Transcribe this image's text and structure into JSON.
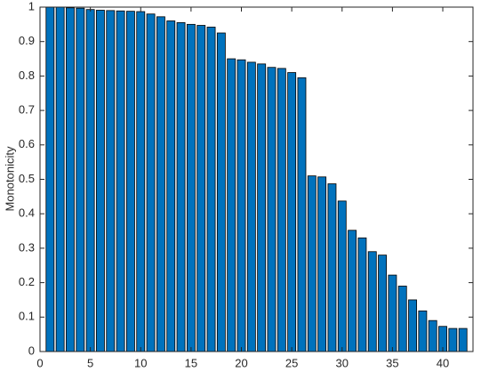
{
  "chart_data": {
    "type": "bar",
    "ylabel": "Monotonicity",
    "x": [
      1,
      2,
      3,
      4,
      5,
      6,
      7,
      8,
      9,
      10,
      11,
      12,
      13,
      14,
      15,
      16,
      17,
      18,
      19,
      20,
      21,
      22,
      23,
      24,
      25,
      26,
      27,
      28,
      29,
      30,
      31,
      32,
      33,
      34,
      35,
      36,
      37,
      38,
      39,
      40,
      41,
      42
    ],
    "values": [
      1,
      1,
      0.998,
      0.997,
      0.993,
      0.991,
      0.99,
      0.989,
      0.988,
      0.987,
      0.98,
      0.972,
      0.96,
      0.955,
      0.95,
      0.947,
      0.942,
      0.925,
      0.85,
      0.847,
      0.84,
      0.835,
      0.825,
      0.822,
      0.81,
      0.795,
      0.51,
      0.507,
      0.487,
      0.437,
      0.352,
      0.33,
      0.29,
      0.28,
      0.222,
      0.19,
      0.15,
      0.118,
      0.09,
      0.073,
      0.067,
      0.067
    ],
    "color": "#0072bd",
    "xlim": [
      0,
      43
    ],
    "xticks": [
      0,
      5,
      10,
      15,
      20,
      25,
      30,
      35,
      40
    ],
    "ylim": [
      0,
      1
    ],
    "yticks": [
      0,
      0.1,
      0.2,
      0.3,
      0.4,
      0.5,
      0.6,
      0.7,
      0.8,
      0.9,
      1
    ],
    "grid": false
  }
}
